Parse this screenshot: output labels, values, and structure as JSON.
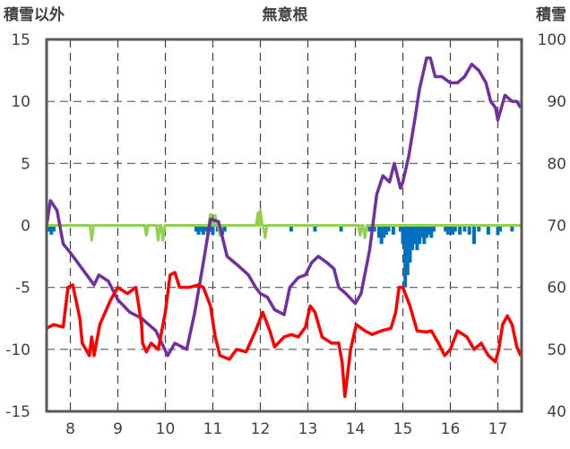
{
  "chart_data": {
    "type": "line",
    "title": "無意根",
    "ylabel_left": "積雪以外",
    "ylabel_right": "積雪",
    "x_ticks": [
      "8",
      "9",
      "10",
      "11",
      "12",
      "13",
      "14",
      "15",
      "16",
      "17"
    ],
    "x_range": [
      7.5,
      17.5
    ],
    "left_axis": {
      "range": [
        -15,
        15
      ],
      "ticks": [
        "15",
        "10",
        "5",
        "0",
        "-5",
        "-10",
        "-15"
      ]
    },
    "right_axis": {
      "range": [
        40,
        100
      ],
      "ticks": [
        "100",
        "90",
        "80",
        "70",
        "60",
        "50",
        "40"
      ]
    },
    "grid": "dashed vertical at each x tick",
    "colors": {
      "purple": "#7030A0",
      "red": "#FF0000",
      "green": "#92D050",
      "blue": "#0070C0",
      "frame": "#595959"
    },
    "series": [
      {
        "color": "purple",
        "axis": "left",
        "points": [
          [
            7.5,
            0
          ],
          [
            7.58,
            2
          ],
          [
            7.72,
            1.2
          ],
          [
            7.85,
            -1.5
          ],
          [
            8.0,
            -2.2
          ],
          [
            8.25,
            -3.5
          ],
          [
            8.5,
            -4.8
          ],
          [
            8.6,
            -4
          ],
          [
            8.8,
            -4.5
          ],
          [
            9.0,
            -6
          ],
          [
            9.25,
            -7
          ],
          [
            9.5,
            -7.5
          ],
          [
            9.8,
            -8.5
          ],
          [
            10.05,
            -10.5
          ],
          [
            10.2,
            -9.5
          ],
          [
            10.45,
            -10
          ],
          [
            10.62,
            -7
          ],
          [
            10.8,
            -3
          ],
          [
            10.95,
            0.5
          ],
          [
            11.12,
            0.3
          ],
          [
            11.3,
            -2.5
          ],
          [
            11.55,
            -3.3
          ],
          [
            11.75,
            -4
          ],
          [
            11.9,
            -5
          ],
          [
            12.0,
            -5.5
          ],
          [
            12.15,
            -5.8
          ],
          [
            12.3,
            -6.8
          ],
          [
            12.5,
            -7.2
          ],
          [
            12.62,
            -5
          ],
          [
            12.8,
            -4.2
          ],
          [
            12.95,
            -4
          ],
          [
            13.08,
            -3
          ],
          [
            13.22,
            -2.5
          ],
          [
            13.4,
            -3
          ],
          [
            13.55,
            -3.5
          ],
          [
            13.65,
            -5
          ],
          [
            13.8,
            -5.5
          ],
          [
            14.0,
            -6.3
          ],
          [
            14.12,
            -5.5
          ],
          [
            14.3,
            -2
          ],
          [
            14.45,
            2.5
          ],
          [
            14.58,
            4
          ],
          [
            14.72,
            3.5
          ],
          [
            14.82,
            5
          ],
          [
            14.95,
            3
          ],
          [
            15.0,
            3.5
          ],
          [
            15.12,
            5.5
          ],
          [
            15.25,
            8.5
          ],
          [
            15.35,
            11
          ],
          [
            15.5,
            13.5
          ],
          [
            15.58,
            13.5
          ],
          [
            15.68,
            12
          ],
          [
            15.82,
            12
          ],
          [
            16.0,
            11.5
          ],
          [
            16.15,
            11.5
          ],
          [
            16.3,
            12
          ],
          [
            16.45,
            13
          ],
          [
            16.6,
            12.5
          ],
          [
            16.75,
            11.5
          ],
          [
            16.85,
            10
          ],
          [
            16.95,
            9.5
          ],
          [
            17.0,
            8.5
          ],
          [
            17.15,
            10.5
          ],
          [
            17.3,
            10
          ],
          [
            17.4,
            10
          ],
          [
            17.48,
            9.5
          ]
        ]
      },
      {
        "color": "red",
        "axis": "left",
        "points": [
          [
            7.5,
            -8.3
          ],
          [
            7.65,
            -8
          ],
          [
            7.85,
            -8.2
          ],
          [
            7.95,
            -5
          ],
          [
            8.05,
            -4.8
          ],
          [
            8.2,
            -7.5
          ],
          [
            8.25,
            -9.5
          ],
          [
            8.4,
            -10.5
          ],
          [
            8.45,
            -9
          ],
          [
            8.5,
            -10.5
          ],
          [
            8.62,
            -8
          ],
          [
            8.85,
            -6
          ],
          [
            9.0,
            -5
          ],
          [
            9.2,
            -5.5
          ],
          [
            9.38,
            -5
          ],
          [
            9.5,
            -8
          ],
          [
            9.52,
            -9.5
          ],
          [
            9.6,
            -10.2
          ],
          [
            9.7,
            -9.5
          ],
          [
            9.85,
            -10
          ],
          [
            9.9,
            -9
          ],
          [
            10.0,
            -7
          ],
          [
            10.1,
            -4
          ],
          [
            10.2,
            -3.8
          ],
          [
            10.3,
            -5
          ],
          [
            10.5,
            -5
          ],
          [
            10.7,
            -4.8
          ],
          [
            10.8,
            -5
          ],
          [
            10.95,
            -6.5
          ],
          [
            11.05,
            -9
          ],
          [
            11.15,
            -10.5
          ],
          [
            11.35,
            -10.8
          ],
          [
            11.5,
            -10
          ],
          [
            11.7,
            -10.2
          ],
          [
            11.9,
            -8.5
          ],
          [
            12.05,
            -7
          ],
          [
            12.2,
            -8.5
          ],
          [
            12.3,
            -9.8
          ],
          [
            12.5,
            -9
          ],
          [
            12.65,
            -8.8
          ],
          [
            12.8,
            -9
          ],
          [
            12.95,
            -8.2
          ],
          [
            13.05,
            -6.5
          ],
          [
            13.15,
            -7
          ],
          [
            13.3,
            -9
          ],
          [
            13.5,
            -9.5
          ],
          [
            13.65,
            -9.5
          ],
          [
            13.72,
            -11
          ],
          [
            13.78,
            -13.8
          ],
          [
            13.9,
            -10
          ],
          [
            14.02,
            -8
          ],
          [
            14.2,
            -8.5
          ],
          [
            14.35,
            -8.8
          ],
          [
            14.55,
            -8.5
          ],
          [
            14.75,
            -8.3
          ],
          [
            14.85,
            -7
          ],
          [
            14.92,
            -5
          ],
          [
            15.0,
            -5
          ],
          [
            15.15,
            -6.5
          ],
          [
            15.3,
            -8.5
          ],
          [
            15.5,
            -8.6
          ],
          [
            15.6,
            -8.5
          ],
          [
            15.75,
            -9.5
          ],
          [
            15.88,
            -10.5
          ],
          [
            16.0,
            -10
          ],
          [
            16.15,
            -8.5
          ],
          [
            16.35,
            -9
          ],
          [
            16.5,
            -10
          ],
          [
            16.65,
            -9.5
          ],
          [
            16.8,
            -10.5
          ],
          [
            16.95,
            -11
          ],
          [
            17.02,
            -10
          ],
          [
            17.1,
            -8
          ],
          [
            17.2,
            -7.3
          ],
          [
            17.3,
            -8
          ],
          [
            17.4,
            -9.8
          ],
          [
            17.48,
            -10.5
          ]
        ]
      },
      {
        "color": "green",
        "axis": "left",
        "baseline": 0,
        "dips": [
          [
            8.45,
            -1.2
          ],
          [
            9.6,
            -0.8
          ],
          [
            9.85,
            -1.2
          ],
          [
            9.95,
            -1.2
          ],
          [
            11.15,
            -0.8
          ],
          [
            12.1,
            -1
          ],
          [
            14.1,
            -0.8
          ],
          [
            14.2,
            -1
          ]
        ],
        "peaks": [
          [
            10.95,
            0.9
          ],
          [
            11.05,
            0.8
          ],
          [
            11.95,
            1
          ],
          [
            12.0,
            1.2
          ]
        ]
      },
      {
        "color": "blue",
        "axis": "right",
        "type": "bar-from-70",
        "bars": [
          [
            7.55,
            69
          ],
          [
            7.6,
            68.5
          ],
          [
            7.65,
            69
          ],
          [
            10.65,
            69
          ],
          [
            10.7,
            68.5
          ],
          [
            10.75,
            69
          ],
          [
            10.8,
            68.5
          ],
          [
            10.85,
            69
          ],
          [
            10.9,
            68.5
          ],
          [
            10.95,
            69
          ],
          [
            11.0,
            68.5
          ],
          [
            11.1,
            69
          ],
          [
            11.2,
            68.5
          ],
          [
            11.25,
            69
          ],
          [
            12.65,
            69
          ],
          [
            13.15,
            69
          ],
          [
            13.7,
            69
          ],
          [
            14.3,
            69
          ],
          [
            14.4,
            69
          ],
          [
            14.5,
            68
          ],
          [
            14.55,
            67
          ],
          [
            14.6,
            68
          ],
          [
            14.65,
            68.5
          ],
          [
            14.7,
            69
          ],
          [
            14.8,
            68.5
          ],
          [
            14.95,
            69
          ],
          [
            15.0,
            67
          ],
          [
            15.05,
            60
          ],
          [
            15.1,
            62
          ],
          [
            15.15,
            64
          ],
          [
            15.2,
            66
          ],
          [
            15.25,
            67
          ],
          [
            15.3,
            66
          ],
          [
            15.35,
            67
          ],
          [
            15.4,
            68
          ],
          [
            15.45,
            67
          ],
          [
            15.5,
            68
          ],
          [
            15.55,
            68.5
          ],
          [
            15.6,
            68
          ],
          [
            15.65,
            69
          ],
          [
            15.9,
            69
          ],
          [
            15.95,
            68.5
          ],
          [
            16.0,
            69
          ],
          [
            16.05,
            68.5
          ],
          [
            16.1,
            69
          ],
          [
            16.2,
            68.5
          ],
          [
            16.3,
            69
          ],
          [
            16.4,
            68.5
          ],
          [
            16.5,
            67
          ],
          [
            16.6,
            69
          ],
          [
            16.8,
            68.5
          ],
          [
            17.0,
            68.5
          ],
          [
            17.05,
            69
          ],
          [
            17.3,
            69
          ]
        ]
      }
    ]
  }
}
